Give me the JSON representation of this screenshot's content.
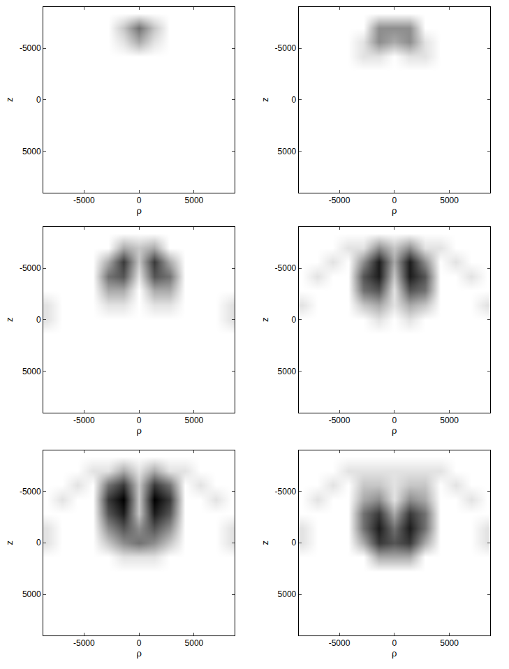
{
  "chart_data": {
    "type": "heatmap",
    "x_label": "ρ",
    "y_label": "z",
    "x": [
      -8400,
      -7000,
      -5600,
      -4200,
      -2800,
      -1400,
      0,
      1400,
      2800,
      4200,
      5600,
      7000,
      8400
    ],
    "y": [
      -8400,
      -7000,
      -5600,
      -4200,
      -2800,
      -1400,
      0,
      1400,
      2800,
      4200,
      5600,
      7000,
      8400
    ],
    "xlim": [
      -8700,
      8700
    ],
    "ylim": [
      9000,
      -9000
    ],
    "xticks": [
      -5000,
      0,
      5000
    ],
    "yticks": [
      -5000,
      0,
      5000
    ],
    "zlim": [
      0,
      9
    ],
    "panels": [
      {
        "cells": [
          [
            0,
            0,
            0,
            0,
            0,
            0,
            0,
            0,
            0,
            0,
            0,
            0,
            0
          ],
          [
            0,
            0,
            0,
            0,
            0,
            2,
            5,
            2,
            0,
            0,
            0,
            0,
            0
          ],
          [
            0,
            0,
            0,
            0,
            0,
            1,
            3,
            1,
            0,
            0,
            0,
            0,
            0
          ],
          [
            0,
            0,
            0,
            0,
            0,
            0,
            0,
            0,
            0,
            0,
            0,
            0,
            0
          ],
          [
            0,
            0,
            0,
            0,
            0,
            0,
            0,
            0,
            0,
            0,
            0,
            0,
            0
          ],
          [
            0,
            0,
            0,
            0,
            0,
            0,
            0,
            0,
            0,
            0,
            0,
            0,
            0
          ],
          [
            0,
            0,
            0,
            0,
            0,
            0,
            0,
            0,
            0,
            0,
            0,
            0,
            0
          ],
          [
            0,
            0,
            0,
            0,
            0,
            0,
            0,
            0,
            0,
            0,
            0,
            0,
            0
          ],
          [
            0,
            0,
            0,
            0,
            0,
            0,
            0,
            0,
            0,
            0,
            0,
            0,
            0
          ],
          [
            0,
            0,
            0,
            0,
            0,
            0,
            0,
            0,
            0,
            0,
            0,
            0,
            0
          ],
          [
            0,
            0,
            0,
            0,
            0,
            0,
            0,
            0,
            0,
            0,
            0,
            0,
            0
          ],
          [
            0,
            0,
            0,
            0,
            0,
            0,
            0,
            0,
            0,
            0,
            0,
            0,
            0
          ],
          [
            0,
            0,
            0,
            0,
            0,
            0,
            0,
            0,
            0,
            0,
            0,
            0,
            0
          ]
        ]
      },
      {
        "cells": [
          [
            0,
            0,
            0,
            0,
            0,
            0,
            0,
            0,
            0,
            0,
            0,
            0,
            0
          ],
          [
            0,
            0,
            0,
            0,
            0,
            4,
            4,
            4,
            0,
            0,
            0,
            0,
            0
          ],
          [
            0,
            0,
            0,
            0,
            1,
            4,
            3,
            4,
            1,
            0,
            0,
            0,
            0
          ],
          [
            0,
            0,
            0,
            0,
            1,
            1,
            0,
            1,
            1,
            0,
            0,
            0,
            0
          ],
          [
            0,
            0,
            0,
            0,
            0,
            0,
            0,
            0,
            0,
            0,
            0,
            0,
            0
          ],
          [
            0,
            0,
            0,
            0,
            0,
            0,
            0,
            0,
            0,
            0,
            0,
            0,
            0
          ],
          [
            0,
            0,
            0,
            0,
            0,
            0,
            0,
            0,
            0,
            0,
            0,
            0,
            0
          ],
          [
            0,
            0,
            0,
            0,
            0,
            0,
            0,
            0,
            0,
            0,
            0,
            0,
            0
          ],
          [
            0,
            0,
            0,
            0,
            0,
            0,
            0,
            0,
            0,
            0,
            0,
            0,
            0
          ],
          [
            0,
            0,
            0,
            0,
            0,
            0,
            0,
            0,
            0,
            0,
            0,
            0,
            0
          ],
          [
            0,
            0,
            0,
            0,
            0,
            0,
            0,
            0,
            0,
            0,
            0,
            0,
            0
          ],
          [
            0,
            0,
            0,
            0,
            0,
            0,
            0,
            0,
            0,
            0,
            0,
            0,
            0
          ],
          [
            0,
            0,
            0,
            0,
            0,
            0,
            0,
            0,
            0,
            0,
            0,
            0,
            0
          ]
        ]
      },
      {
        "cells": [
          [
            0,
            0,
            0,
            0,
            0,
            0,
            0,
            0,
            0,
            0,
            0,
            0,
            0
          ],
          [
            0,
            0,
            0,
            0,
            0,
            3,
            2,
            3,
            0,
            0,
            0,
            0,
            0
          ],
          [
            0,
            0,
            0,
            0,
            3,
            7,
            2,
            7,
            3,
            0,
            0,
            0,
            0
          ],
          [
            0,
            0,
            0,
            0,
            5,
            6,
            1,
            6,
            5,
            0,
            0,
            0,
            0
          ],
          [
            0,
            0,
            0,
            0,
            3,
            3,
            0,
            3,
            3,
            0,
            0,
            0,
            0
          ],
          [
            1,
            0,
            0,
            0,
            1,
            1,
            0,
            1,
            1,
            0,
            0,
            0,
            1
          ],
          [
            1,
            0,
            0,
            0,
            0,
            0,
            0,
            0,
            0,
            0,
            0,
            0,
            1
          ],
          [
            0,
            0,
            0,
            0,
            0,
            0,
            0,
            0,
            0,
            0,
            0,
            0,
            0
          ],
          [
            0,
            0,
            0,
            0,
            0,
            0,
            0,
            0,
            0,
            0,
            0,
            0,
            0
          ],
          [
            0,
            0,
            0,
            0,
            0,
            0,
            0,
            0,
            0,
            0,
            0,
            0,
            0
          ],
          [
            0,
            0,
            0,
            0,
            0,
            0,
            0,
            0,
            0,
            0,
            0,
            0,
            0
          ],
          [
            0,
            0,
            0,
            0,
            0,
            0,
            0,
            0,
            0,
            0,
            0,
            0,
            0
          ],
          [
            0,
            0,
            0,
            0,
            0,
            0,
            0,
            0,
            0,
            0,
            0,
            0,
            0
          ]
        ]
      },
      {
        "cells": [
          [
            0,
            0,
            0,
            0,
            0,
            0,
            0,
            0,
            0,
            0,
            0,
            0,
            0
          ],
          [
            0,
            0,
            0,
            1,
            1,
            4,
            2,
            4,
            1,
            1,
            0,
            0,
            0
          ],
          [
            0,
            0,
            1,
            0,
            4,
            8,
            3,
            8,
            4,
            0,
            1,
            0,
            0
          ],
          [
            0,
            1,
            0,
            0,
            6,
            8,
            2,
            8,
            6,
            0,
            0,
            1,
            0
          ],
          [
            0,
            0,
            0,
            0,
            5,
            6,
            1,
            6,
            5,
            0,
            0,
            0,
            0
          ],
          [
            1,
            0,
            0,
            0,
            2,
            3,
            1,
            3,
            2,
            0,
            0,
            0,
            1
          ],
          [
            0,
            0,
            0,
            0,
            0,
            1,
            0,
            1,
            0,
            0,
            0,
            0,
            0
          ],
          [
            0,
            0,
            0,
            0,
            0,
            0,
            0,
            0,
            0,
            0,
            0,
            0,
            0
          ],
          [
            0,
            0,
            0,
            0,
            0,
            0,
            0,
            0,
            0,
            0,
            0,
            0,
            0
          ],
          [
            0,
            0,
            0,
            0,
            0,
            0,
            0,
            0,
            0,
            0,
            0,
            0,
            0
          ],
          [
            0,
            0,
            0,
            0,
            0,
            0,
            0,
            0,
            0,
            0,
            0,
            0,
            0
          ],
          [
            0,
            0,
            0,
            0,
            0,
            0,
            0,
            0,
            0,
            0,
            0,
            0,
            0
          ],
          [
            0,
            0,
            0,
            0,
            0,
            0,
            0,
            0,
            0,
            0,
            0,
            0,
            0
          ]
        ]
      },
      {
        "cells": [
          [
            0,
            0,
            0,
            0,
            0,
            0,
            0,
            0,
            0,
            0,
            0,
            0,
            0
          ],
          [
            0,
            0,
            0,
            1,
            1,
            3,
            1,
            3,
            1,
            1,
            0,
            0,
            0
          ],
          [
            0,
            0,
            1,
            0,
            5,
            7,
            2,
            7,
            5,
            0,
            1,
            0,
            0
          ],
          [
            0,
            1,
            0,
            0,
            7,
            9,
            2,
            9,
            7,
            0,
            0,
            1,
            0
          ],
          [
            0,
            0,
            0,
            0,
            6,
            8,
            2,
            8,
            6,
            0,
            0,
            0,
            0
          ],
          [
            1,
            0,
            0,
            0,
            4,
            6,
            4,
            6,
            4,
            0,
            0,
            0,
            1
          ],
          [
            1,
            0,
            0,
            0,
            2,
            4,
            5,
            4,
            2,
            0,
            0,
            0,
            1
          ],
          [
            0,
            0,
            0,
            0,
            0,
            1,
            1,
            1,
            0,
            0,
            0,
            0,
            0
          ],
          [
            0,
            0,
            0,
            0,
            0,
            0,
            0,
            0,
            0,
            0,
            0,
            0,
            0
          ],
          [
            0,
            0,
            0,
            0,
            0,
            0,
            0,
            0,
            0,
            0,
            0,
            0,
            0
          ],
          [
            0,
            0,
            0,
            0,
            0,
            0,
            0,
            0,
            0,
            0,
            0,
            0,
            0
          ],
          [
            0,
            0,
            0,
            0,
            0,
            0,
            0,
            0,
            0,
            0,
            0,
            0,
            0
          ],
          [
            0,
            0,
            0,
            0,
            0,
            0,
            0,
            0,
            0,
            0,
            0,
            0,
            0
          ]
        ]
      },
      {
        "cells": [
          [
            0,
            0,
            0,
            0,
            0,
            0,
            0,
            0,
            0,
            0,
            0,
            0,
            0
          ],
          [
            0,
            0,
            0,
            1,
            1,
            1,
            1,
            1,
            1,
            1,
            0,
            0,
            0
          ],
          [
            0,
            0,
            1,
            0,
            2,
            2,
            1,
            2,
            2,
            0,
            1,
            0,
            0
          ],
          [
            0,
            1,
            0,
            0,
            3,
            4,
            1,
            4,
            3,
            0,
            0,
            1,
            0
          ],
          [
            0,
            0,
            0,
            0,
            5,
            7,
            3,
            7,
            5,
            0,
            0,
            0,
            0
          ],
          [
            1,
            0,
            0,
            0,
            5,
            8,
            5,
            8,
            5,
            0,
            0,
            0,
            1
          ],
          [
            1,
            0,
            0,
            0,
            3,
            7,
            6,
            7,
            3,
            0,
            0,
            0,
            1
          ],
          [
            0,
            0,
            0,
            0,
            0,
            3,
            3,
            3,
            0,
            0,
            0,
            0,
            0
          ],
          [
            0,
            0,
            0,
            0,
            0,
            0,
            0,
            0,
            0,
            0,
            0,
            0,
            0
          ],
          [
            0,
            0,
            0,
            0,
            0,
            0,
            0,
            0,
            0,
            0,
            0,
            0,
            0
          ],
          [
            0,
            0,
            0,
            0,
            0,
            0,
            0,
            0,
            0,
            0,
            0,
            0,
            0
          ],
          [
            0,
            0,
            0,
            0,
            0,
            0,
            0,
            0,
            0,
            0,
            0,
            0,
            0
          ],
          [
            0,
            0,
            0,
            0,
            0,
            0,
            0,
            0,
            0,
            0,
            0,
            0,
            0
          ]
        ]
      }
    ]
  }
}
